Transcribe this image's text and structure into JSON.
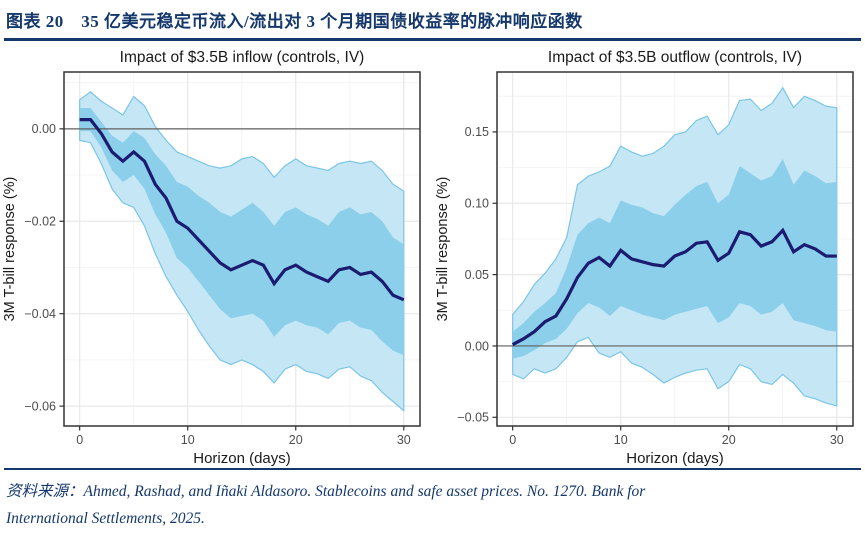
{
  "header": {
    "title": "图表 20　35 亿美元稳定币流入/流出对 3 个月期国债收益率的脉冲响应函数"
  },
  "source": {
    "line1": "资料来源：Ahmed, Rashad, and Iñaki Aldasoro. Stablecoins and safe asset prices. No. 1270. Bank for",
    "line2": "International Settlements, 2025."
  },
  "colors": {
    "navy": "#15386c",
    "line": "#1b1b70",
    "band_inner": "#8bcfea",
    "band_outer": "#c5e6f4",
    "band_edge": "#7cc5e6",
    "zero_line": "#606060",
    "grid_major": "#e8e8e8",
    "grid_minor": "#f4f4f4",
    "panel_border": "#333333",
    "tick_label": "#4d4d4d",
    "text": "#1a1a1a"
  },
  "chart_data": [
    {
      "type": "line",
      "title": "Impact of $3.5B inflow (controls, IV)",
      "xlabel": "Horizon (days)",
      "ylabel": "3M T-bill response (%)",
      "legend": "none",
      "grid": "on",
      "x": [
        0,
        1,
        2,
        3,
        4,
        5,
        6,
        7,
        8,
        9,
        10,
        11,
        12,
        13,
        14,
        15,
        16,
        17,
        18,
        19,
        20,
        21,
        22,
        23,
        24,
        25,
        26,
        27,
        28,
        29,
        30
      ],
      "series": [
        {
          "name": "mean response",
          "values": [
            0.002,
            0.002,
            -0.001,
            -0.005,
            -0.007,
            -0.005,
            -0.007,
            -0.012,
            -0.015,
            -0.02,
            -0.0215,
            -0.024,
            -0.0265,
            -0.029,
            -0.0305,
            -0.0295,
            -0.0285,
            -0.0295,
            -0.0335,
            -0.0305,
            -0.0295,
            -0.031,
            -0.032,
            -0.033,
            -0.0305,
            -0.03,
            -0.0315,
            -0.031,
            -0.033,
            -0.036,
            -0.037
          ]
        }
      ],
      "bands": {
        "inner": {
          "upper": [
            0.0045,
            0.0045,
            0.0015,
            -0.0015,
            -0.003,
            -0.0005,
            -0.002,
            -0.0055,
            -0.008,
            -0.0115,
            -0.0125,
            -0.0145,
            -0.016,
            -0.018,
            -0.019,
            -0.0175,
            -0.016,
            -0.018,
            -0.021,
            -0.018,
            -0.017,
            -0.0185,
            -0.0195,
            -0.021,
            -0.018,
            -0.017,
            -0.0185,
            -0.018,
            -0.02,
            -0.0235,
            -0.025
          ],
          "lower": [
            -0.0005,
            -0.0005,
            -0.004,
            -0.009,
            -0.0115,
            -0.01,
            -0.013,
            -0.0185,
            -0.0225,
            -0.028,
            -0.03,
            -0.033,
            -0.036,
            -0.039,
            -0.041,
            -0.0405,
            -0.04,
            -0.0415,
            -0.045,
            -0.0425,
            -0.0415,
            -0.0425,
            -0.043,
            -0.0445,
            -0.042,
            -0.0415,
            -0.043,
            -0.0435,
            -0.046,
            -0.048,
            -0.049
          ]
        },
        "outer": {
          "upper": [
            0.0063,
            0.008,
            0.006,
            0.0045,
            0.003,
            0.007,
            0.005,
            0.0005,
            -0.0025,
            -0.005,
            -0.006,
            -0.007,
            -0.008,
            -0.0085,
            -0.008,
            -0.0065,
            -0.006,
            -0.0075,
            -0.0105,
            -0.008,
            -0.0065,
            -0.008,
            -0.0085,
            -0.009,
            -0.0075,
            -0.007,
            -0.0075,
            -0.007,
            -0.009,
            -0.012,
            -0.0135
          ],
          "lower": [
            -0.0025,
            -0.003,
            -0.0075,
            -0.013,
            -0.016,
            -0.017,
            -0.021,
            -0.027,
            -0.032,
            -0.036,
            -0.0395,
            -0.0435,
            -0.047,
            -0.05,
            -0.051,
            -0.05,
            -0.051,
            -0.0525,
            -0.055,
            -0.052,
            -0.051,
            -0.0525,
            -0.053,
            -0.054,
            -0.052,
            -0.0515,
            -0.0535,
            -0.0545,
            -0.057,
            -0.059,
            -0.061
          ]
        }
      },
      "xticks": [
        0,
        10,
        20,
        30
      ],
      "xtick_labels": [
        "0",
        "10",
        "20",
        "30"
      ],
      "ytick_values": [
        0,
        -0.02,
        -0.04,
        -0.06
      ],
      "ytick_labels": [
        "0.00",
        "−0.02",
        "−0.04",
        "−0.06"
      ],
      "xlim": [
        -1.45,
        31.5
      ],
      "ylim": [
        -0.0643,
        0.0123
      ]
    },
    {
      "type": "line",
      "title": "Impact of $3.5B outflow (controls, IV)",
      "xlabel": "Horizon (days)",
      "ylabel": "3M T-bill response (%)",
      "legend": "none",
      "grid": "on",
      "x": [
        0,
        1,
        2,
        3,
        4,
        5,
        6,
        7,
        8,
        9,
        10,
        11,
        12,
        13,
        14,
        15,
        16,
        17,
        18,
        19,
        20,
        21,
        22,
        23,
        24,
        25,
        26,
        27,
        28,
        29,
        30
      ],
      "series": [
        {
          "name": "mean response",
          "values": [
            0.001,
            0.005,
            0.01,
            0.017,
            0.021,
            0.033,
            0.048,
            0.058,
            0.062,
            0.056,
            0.067,
            0.061,
            0.059,
            0.057,
            0.056,
            0.063,
            0.066,
            0.072,
            0.073,
            0.06,
            0.065,
            0.08,
            0.078,
            0.07,
            0.073,
            0.081,
            0.066,
            0.071,
            0.068,
            0.063,
            0.063
          ]
        }
      ],
      "bands": {
        "inner": {
          "upper": [
            0.01,
            0.016,
            0.024,
            0.03,
            0.037,
            0.055,
            0.078,
            0.086,
            0.09,
            0.086,
            0.102,
            0.099,
            0.097,
            0.093,
            0.091,
            0.099,
            0.106,
            0.112,
            0.115,
            0.1,
            0.106,
            0.126,
            0.121,
            0.116,
            0.119,
            0.131,
            0.113,
            0.123,
            0.119,
            0.114,
            0.115
          ],
          "lower": [
            -0.009,
            -0.007,
            -0.003,
            0.002,
            0.005,
            0.012,
            0.023,
            0.03,
            0.027,
            0.021,
            0.028,
            0.025,
            0.022,
            0.02,
            0.018,
            0.022,
            0.024,
            0.026,
            0.028,
            0.016,
            0.02,
            0.03,
            0.028,
            0.022,
            0.024,
            0.03,
            0.018,
            0.016,
            0.014,
            0.011,
            0.01
          ]
        },
        "outer": {
          "upper": [
            0.022,
            0.031,
            0.043,
            0.051,
            0.061,
            0.076,
            0.113,
            0.119,
            0.122,
            0.126,
            0.14,
            0.136,
            0.133,
            0.135,
            0.14,
            0.148,
            0.15,
            0.158,
            0.161,
            0.148,
            0.155,
            0.172,
            0.173,
            0.165,
            0.17,
            0.181,
            0.167,
            0.175,
            0.172,
            0.168,
            0.167
          ],
          "lower": [
            -0.02,
            -0.023,
            -0.016,
            -0.019,
            -0.016,
            -0.008,
            0.003,
            0.006,
            -0.005,
            -0.008,
            -0.004,
            -0.012,
            -0.015,
            -0.02,
            -0.026,
            -0.022,
            -0.019,
            -0.017,
            -0.016,
            -0.03,
            -0.025,
            -0.013,
            -0.016,
            -0.025,
            -0.027,
            -0.02,
            -0.026,
            -0.035,
            -0.037,
            -0.04,
            -0.042
          ]
        }
      },
      "xticks": [
        0,
        10,
        20,
        30
      ],
      "xtick_labels": [
        "0",
        "10",
        "20",
        "30"
      ],
      "ytick_values": [
        0.15,
        0.1,
        0.05,
        0,
        -0.05
      ],
      "ytick_labels": [
        "0.15",
        "0.10",
        "0.05",
        "0.00",
        "−0.05"
      ],
      "xlim": [
        -1.45,
        31.5
      ],
      "ylim": [
        -0.0561,
        0.192
      ]
    }
  ]
}
